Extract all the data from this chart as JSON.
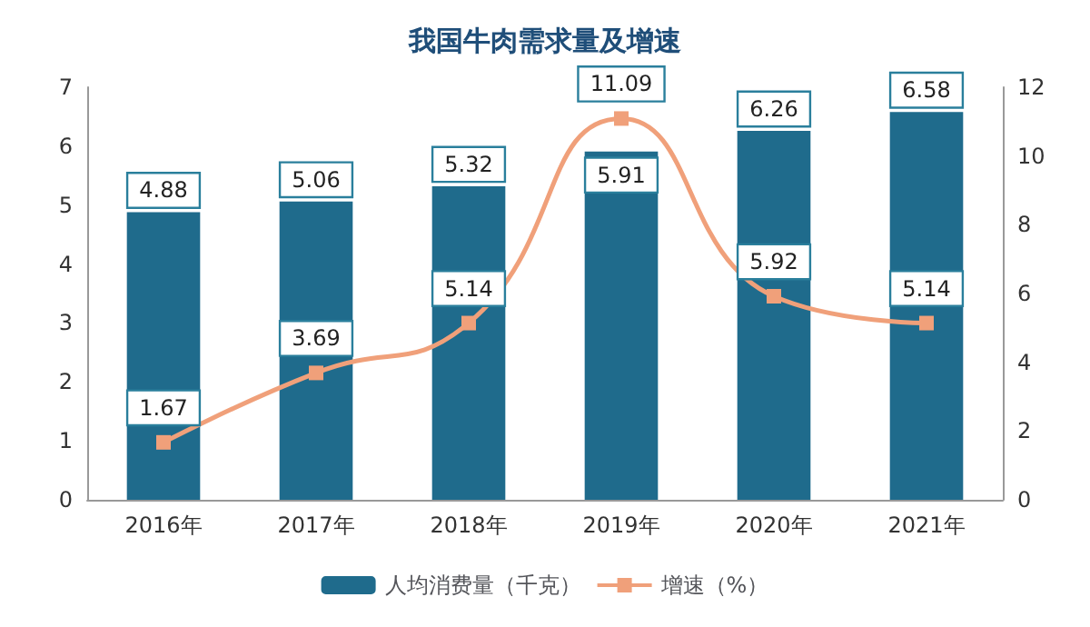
{
  "chart_data": {
    "type": "bar",
    "title": "我国牛肉需求量及增速",
    "categories": [
      "2016年",
      "2017年",
      "2018年",
      "2019年",
      "2020年",
      "2021年"
    ],
    "series": [
      {
        "name": "人均消费量（千克）",
        "type": "bar",
        "color": "#1f6b8c",
        "values": [
          4.88,
          5.06,
          5.32,
          5.91,
          6.26,
          6.58
        ]
      },
      {
        "name": "增速（%）",
        "type": "line",
        "axis": "y2",
        "color": "#f0a07a",
        "values": [
          1.67,
          3.69,
          5.14,
          11.09,
          5.92,
          5.14
        ]
      }
    ],
    "ylim": [
      0,
      7
    ],
    "yticks": [
      0,
      1,
      2,
      3,
      4,
      5,
      6,
      7
    ],
    "y2lim": [
      0,
      12
    ],
    "y2ticks": [
      0,
      2,
      4,
      6,
      8,
      10,
      12
    ],
    "data_labels": true,
    "legend": "bottom",
    "marker": "square",
    "grid": false
  }
}
